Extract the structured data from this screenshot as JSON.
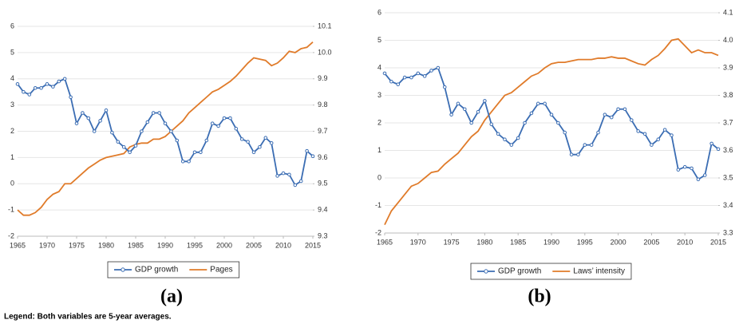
{
  "chart_data": [
    {
      "type": "line",
      "caption": "(a)",
      "x": [
        1965,
        1966,
        1967,
        1968,
        1969,
        1970,
        1971,
        1972,
        1973,
        1974,
        1975,
        1976,
        1977,
        1978,
        1979,
        1980,
        1981,
        1982,
        1983,
        1984,
        1985,
        1986,
        1987,
        1988,
        1989,
        1990,
        1991,
        1992,
        1993,
        1994,
        1995,
        1996,
        1997,
        1998,
        1999,
        2000,
        2001,
        2002,
        2003,
        2004,
        2005,
        2006,
        2007,
        2008,
        2009,
        2010,
        2011,
        2012,
        2013,
        2014,
        2015
      ],
      "xlim": [
        1965,
        2015
      ],
      "xticks": [
        1965,
        1970,
        1975,
        1980,
        1985,
        1990,
        1995,
        2000,
        2005,
        2010,
        2015
      ],
      "ylim": [
        -2,
        6
      ],
      "yticks": [
        -2,
        -1,
        0,
        1,
        2,
        3,
        4,
        5,
        6
      ],
      "y2lim": [
        9.3,
        10.1
      ],
      "y2ticks": [
        9.3,
        9.4,
        9.5,
        9.6,
        9.7,
        9.8,
        9.9,
        {
          "value": 10,
          "label": "10.0"
        },
        10.1
      ],
      "grid": true,
      "series": [
        {
          "name": "GDP growth",
          "color": "#3b6db3",
          "marker": "circle",
          "values": [
            3.8,
            3.5,
            3.4,
            3.65,
            3.65,
            3.8,
            3.7,
            3.9,
            4.0,
            3.3,
            2.3,
            2.7,
            2.5,
            2.0,
            2.4,
            2.8,
            1.95,
            1.6,
            1.4,
            1.2,
            1.45,
            2.0,
            2.35,
            2.7,
            2.7,
            2.3,
            2.0,
            1.65,
            0.85,
            0.85,
            1.2,
            1.2,
            1.65,
            2.3,
            2.2,
            2.5,
            2.5,
            2.1,
            1.7,
            1.6,
            1.2,
            1.4,
            1.75,
            1.55,
            0.3,
            0.4,
            0.35,
            -0.05,
            0.1,
            1.25,
            1.05
          ]
        },
        {
          "name": "Pages",
          "color": "#e07b2a",
          "axis": "y2",
          "values": [
            9.4,
            9.38,
            9.38,
            9.39,
            9.41,
            9.44,
            9.46,
            9.47,
            9.5,
            9.5,
            9.52,
            9.54,
            9.56,
            9.575,
            9.59,
            9.6,
            9.605,
            9.61,
            9.615,
            9.64,
            9.65,
            9.655,
            9.655,
            9.67,
            9.67,
            9.68,
            9.7,
            9.72,
            9.74,
            9.77,
            9.79,
            9.81,
            9.83,
            9.85,
            9.86,
            9.875,
            9.89,
            9.91,
            9.935,
            9.96,
            9.98,
            9.975,
            9.97,
            9.95,
            9.96,
            9.98,
            10.005,
            10.0,
            10.015,
            10.02,
            10.04
          ]
        }
      ]
    },
    {
      "type": "line",
      "caption": "(b)",
      "x": [
        1965,
        1966,
        1967,
        1968,
        1969,
        1970,
        1971,
        1972,
        1973,
        1974,
        1975,
        1976,
        1977,
        1978,
        1979,
        1980,
        1981,
        1982,
        1983,
        1984,
        1985,
        1986,
        1987,
        1988,
        1989,
        1990,
        1991,
        1992,
        1993,
        1994,
        1995,
        1996,
        1997,
        1998,
        1999,
        2000,
        2001,
        2002,
        2003,
        2004,
        2005,
        2006,
        2007,
        2008,
        2009,
        2010,
        2011,
        2012,
        2013,
        2014,
        2015
      ],
      "xlim": [
        1965,
        2015
      ],
      "xticks": [
        1965,
        1970,
        1975,
        1980,
        1985,
        1990,
        1995,
        2000,
        2005,
        2010,
        2015
      ],
      "ylim": [
        -2,
        6
      ],
      "yticks": [
        -2,
        -1,
        0,
        1,
        2,
        3,
        4,
        5,
        6
      ],
      "y2lim": [
        3.3,
        4.1
      ],
      "y2ticks": [
        3.3,
        3.4,
        3.5,
        3.6,
        3.7,
        3.8,
        3.9,
        {
          "value": 4,
          "label": "4.0"
        },
        4.1
      ],
      "grid": true,
      "series": [
        {
          "name": "GDP growth",
          "color": "#3b6db3",
          "marker": "circle",
          "values": [
            3.8,
            3.5,
            3.4,
            3.65,
            3.65,
            3.8,
            3.7,
            3.9,
            4.0,
            3.3,
            2.3,
            2.7,
            2.5,
            2.0,
            2.4,
            2.8,
            1.95,
            1.6,
            1.4,
            1.2,
            1.45,
            2.0,
            2.35,
            2.7,
            2.7,
            2.3,
            2.0,
            1.65,
            0.85,
            0.85,
            1.2,
            1.2,
            1.65,
            2.3,
            2.2,
            2.5,
            2.5,
            2.1,
            1.7,
            1.6,
            1.2,
            1.4,
            1.75,
            1.55,
            0.3,
            0.4,
            0.35,
            -0.05,
            0.1,
            1.25,
            1.05
          ]
        },
        {
          "name": "Laws’ intensity",
          "color": "#e07b2a",
          "axis": "y2",
          "values": [
            3.33,
            3.38,
            3.41,
            3.44,
            3.47,
            3.48,
            3.5,
            3.52,
            3.525,
            3.55,
            3.57,
            3.59,
            3.62,
            3.65,
            3.67,
            3.71,
            3.74,
            3.77,
            3.8,
            3.81,
            3.83,
            3.85,
            3.87,
            3.88,
            3.9,
            3.915,
            3.92,
            3.92,
            3.925,
            3.93,
            3.93,
            3.93,
            3.935,
            3.935,
            3.94,
            3.935,
            3.935,
            3.925,
            3.915,
            3.91,
            3.93,
            3.945,
            3.97,
            4.0,
            4.005,
            3.98,
            3.955,
            3.965,
            3.955,
            3.955,
            3.945
          ]
        }
      ]
    }
  ],
  "footnote": "Legend: Both variables are 5-year averages."
}
